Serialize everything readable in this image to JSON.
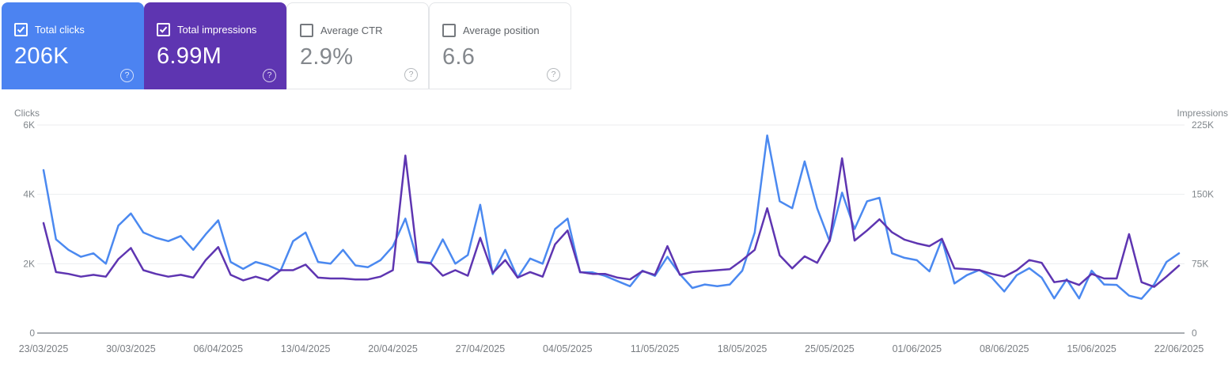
{
  "cards": [
    {
      "label": "Total clicks",
      "value": "206K",
      "checked": true,
      "bg": "#4c83f1",
      "help_glyph": "?"
    },
    {
      "label": "Total impressions",
      "value": "6.99M",
      "checked": true,
      "bg": "#5e35b1",
      "help_glyph": "?"
    },
    {
      "label": "Average CTR",
      "value": "2.9%",
      "checked": false,
      "bg": "#ffffff",
      "help_glyph": "?"
    },
    {
      "label": "Average position",
      "value": "6.6",
      "checked": false,
      "bg": "#ffffff",
      "help_glyph": "?"
    }
  ],
  "chart_data": {
    "type": "line",
    "grid": true,
    "legend_position": "none",
    "date_start": "23/03/2025",
    "date_end": "22/06/2025",
    "x_tick_labels": [
      "23/03/2025",
      "30/03/2025",
      "06/04/2025",
      "13/04/2025",
      "20/04/2025",
      "27/04/2025",
      "04/05/2025",
      "11/05/2025",
      "18/05/2025",
      "25/05/2025",
      "01/06/2025",
      "08/06/2025",
      "15/06/2025",
      "22/06/2025"
    ],
    "x_tick_step_days": 7,
    "left_axis": {
      "title": "Clicks",
      "max": 6000,
      "ticks": [
        {
          "label": "6K",
          "value": 6000
        },
        {
          "label": "4K",
          "value": 4000
        },
        {
          "label": "2K",
          "value": 2000
        },
        {
          "label": "0",
          "value": 0
        }
      ]
    },
    "right_axis": {
      "title": "Impressions",
      "max": 225000,
      "ticks": [
        {
          "label": "225K",
          "value": 225000
        },
        {
          "label": "150K",
          "value": 150000
        },
        {
          "label": "75K",
          "value": 75000
        },
        {
          "label": "0",
          "value": 0
        }
      ]
    },
    "series": [
      {
        "name": "Total clicks",
        "axis": "left",
        "color": "#4b89f0",
        "values": [
          4700,
          2700,
          2400,
          2200,
          2300,
          2000,
          3100,
          3450,
          2900,
          2750,
          2650,
          2800,
          2400,
          2850,
          3250,
          2050,
          1850,
          2050,
          1950,
          1800,
          2650,
          2900,
          2050,
          2000,
          2400,
          1950,
          1900,
          2100,
          2500,
          3300,
          2050,
          2000,
          2700,
          2000,
          2250,
          3700,
          1700,
          2400,
          1600,
          2150,
          2000,
          3000,
          3300,
          1750,
          1750,
          1650,
          1500,
          1350,
          1800,
          1650,
          2200,
          1700,
          1300,
          1400,
          1350,
          1400,
          1800,
          2900,
          5700,
          3800,
          3600,
          4950,
          3600,
          2650,
          4050,
          3000,
          3800,
          3900,
          2300,
          2170,
          2100,
          1780,
          2700,
          1430,
          1670,
          1820,
          1600,
          1200,
          1670,
          1870,
          1600,
          1000,
          1550,
          1000,
          1800,
          1400,
          1390,
          1080,
          990,
          1400,
          2050,
          2300
        ]
      },
      {
        "name": "Total impressions",
        "axis": "right",
        "color": "#5e35b1",
        "values": [
          119000,
          66000,
          64000,
          61000,
          63000,
          61000,
          80000,
          92000,
          68000,
          64000,
          61000,
          63000,
          60000,
          79000,
          93000,
          63000,
          57000,
          61000,
          57000,
          68000,
          68000,
          74000,
          60000,
          59000,
          59000,
          58000,
          58000,
          61000,
          68000,
          192000,
          77000,
          76000,
          62000,
          68000,
          62000,
          103000,
          65000,
          79000,
          60000,
          66000,
          61000,
          96000,
          111000,
          66000,
          64000,
          64000,
          60000,
          58000,
          67000,
          63000,
          94000,
          63000,
          66000,
          67000,
          68000,
          69000,
          79000,
          90000,
          135000,
          84000,
          70000,
          83000,
          76000,
          100000,
          189000,
          100000,
          111000,
          123000,
          109000,
          101000,
          97000,
          94000,
          102000,
          70000,
          69000,
          68000,
          64000,
          61000,
          68000,
          79000,
          76000,
          55000,
          57000,
          52000,
          64000,
          59000,
          59000,
          107000,
          55000,
          50000,
          61000,
          73000
        ]
      }
    ]
  },
  "colors": {
    "grid_line": "#ebedef",
    "zero_line": "#a9adb2",
    "axis_text": "#80868b",
    "date_text": "#797d82"
  }
}
